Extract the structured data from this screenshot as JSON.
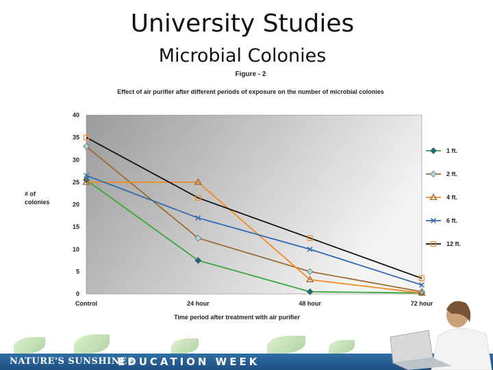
{
  "slide": {
    "title": "University Studies",
    "subtitle": "Microbial Colonies"
  },
  "footer": {
    "brand": "NATURE'S SUNSHINE®",
    "event": "EDUCATION WEEK"
  },
  "colors": {
    "plot_bg_dark": "#9b9b9b",
    "plot_bg_light": "#f4f4f4",
    "footer_band": "#2a62a0"
  },
  "chart_data": {
    "type": "line",
    "figure_label": "Figure - 2",
    "title": "Effect of air purifier after different periods of exposure on the number of microbial colonies",
    "xlabel": "Time period after treatment with air purifier",
    "ylabel": "# of colonies",
    "categories": [
      "Control",
      "24 hour",
      "48 hour",
      "72 hour"
    ],
    "ylim": [
      0,
      40
    ],
    "yticks": [
      0,
      5,
      10,
      15,
      20,
      25,
      30,
      35,
      40
    ],
    "grid": false,
    "legend_position": "right",
    "series": [
      {
        "name": "1 ft.",
        "values": [
          25.5,
          7.5,
          0.5,
          0.2
        ],
        "line_color": "#3aa63a",
        "marker": "diamond",
        "marker_color": "#1f6b78"
      },
      {
        "name": "2 ft.",
        "values": [
          33,
          12.5,
          5,
          0.5
        ],
        "line_color": "#9b6b2f",
        "marker": "diamond",
        "marker_color": "#a8d8d2"
      },
      {
        "name": "4 ft.",
        "values": [
          25,
          25,
          3.2,
          0.2
        ],
        "line_color": "#f58a1f",
        "marker": "triangle",
        "marker_color": "#9b6b2f"
      },
      {
        "name": "6 ft.",
        "values": [
          26.5,
          17,
          10,
          2
        ],
        "line_color": "#2f68b0",
        "marker": "x",
        "marker_color": "#2f68b0"
      },
      {
        "name": "12 ft.",
        "values": [
          35,
          21.5,
          12.5,
          3.5
        ],
        "line_color": "#111111",
        "marker": "square",
        "marker_color": "#f58a1f"
      }
    ]
  }
}
